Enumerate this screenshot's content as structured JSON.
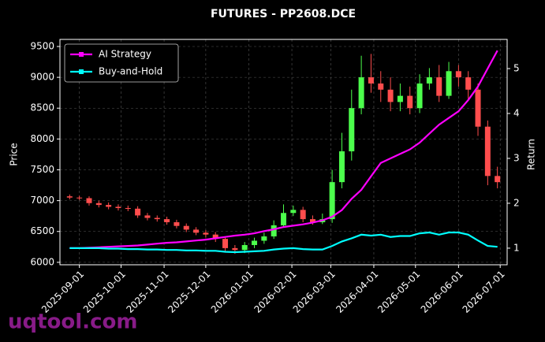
{
  "chart_data": {
    "type": "candlestick",
    "title": "FUTURES - PP2608.DCE",
    "ylabel": "Price",
    "y2label": "Return",
    "x": [
      "2025-08-25",
      "2025-09-01",
      "2025-09-08",
      "2025-09-15",
      "2025-09-22",
      "2025-09-29",
      "2025-10-06",
      "2025-10-13",
      "2025-10-20",
      "2025-10-27",
      "2025-11-03",
      "2025-11-10",
      "2025-11-17",
      "2025-11-24",
      "2025-12-01",
      "2025-12-08",
      "2025-12-15",
      "2025-12-22",
      "2025-12-29",
      "2026-01-05",
      "2026-01-12",
      "2026-01-19",
      "2026-01-26",
      "2026-02-02",
      "2026-02-09",
      "2026-02-16",
      "2026-02-23",
      "2026-03-02",
      "2026-03-09",
      "2026-03-16",
      "2026-03-23",
      "2026-03-30",
      "2026-04-06",
      "2026-04-13",
      "2026-04-20",
      "2026-04-27",
      "2026-05-04",
      "2026-05-11",
      "2026-05-18",
      "2026-05-25",
      "2026-06-01",
      "2026-06-08",
      "2026-06-15",
      "2026-06-22",
      "2026-06-29"
    ],
    "open": [
      7070,
      7050,
      7040,
      6960,
      6930,
      6900,
      6880,
      6870,
      6760,
      6720,
      6700,
      6650,
      6590,
      6530,
      6480,
      6450,
      6380,
      6230,
      6200,
      6280,
      6350,
      6420,
      6600,
      6800,
      6850,
      6700,
      6650,
      6700,
      7300,
      7800,
      8500,
      9000,
      8900,
      8800,
      8600,
      8700,
      8500,
      8900,
      9000,
      8700,
      9100,
      9000,
      8800,
      8200,
      7400
    ],
    "high": [
      7100,
      7080,
      7070,
      7000,
      6970,
      6940,
      6920,
      6910,
      6800,
      6760,
      6740,
      6690,
      6630,
      6570,
      6520,
      6490,
      6420,
      6280,
      6330,
      6400,
      6480,
      6680,
      6940,
      6920,
      6900,
      6760,
      6790,
      7500,
      8100,
      8800,
      9350,
      9380,
      9100,
      9000,
      8900,
      8850,
      9050,
      9150,
      9200,
      9250,
      9200,
      9100,
      8900,
      8300,
      7550
    ],
    "low": [
      7020,
      7010,
      6920,
      6890,
      6860,
      6840,
      6830,
      6720,
      6680,
      6660,
      6610,
      6550,
      6490,
      6440,
      6400,
      6330,
      6180,
      6140,
      6150,
      6230,
      6300,
      6380,
      6560,
      6750,
      6650,
      6610,
      6620,
      6640,
      7200,
      7650,
      8400,
      8750,
      8600,
      8450,
      8450,
      8400,
      8420,
      8800,
      8600,
      8650,
      8850,
      8650,
      8050,
      7250,
      7200
    ],
    "close": [
      7050,
      7040,
      6960,
      6930,
      6900,
      6880,
      6870,
      6760,
      6720,
      6700,
      6650,
      6590,
      6530,
      6480,
      6450,
      6380,
      6230,
      6200,
      6280,
      6350,
      6420,
      6600,
      6800,
      6850,
      6700,
      6650,
      6700,
      7300,
      7800,
      8500,
      9000,
      8900,
      8800,
      8600,
      8700,
      8500,
      8900,
      9000,
      8700,
      9100,
      9000,
      8800,
      8200,
      7400,
      7300
    ],
    "up_color": "#4cff4c",
    "down_color": "#ff4d4d",
    "series": [
      {
        "name": "AI Strategy",
        "color": "#ff00ff",
        "axis": "y2",
        "values": [
          1.0,
          1.0,
          1.01,
          1.02,
          1.03,
          1.04,
          1.05,
          1.06,
          1.08,
          1.1,
          1.12,
          1.13,
          1.15,
          1.17,
          1.19,
          1.22,
          1.25,
          1.28,
          1.3,
          1.33,
          1.38,
          1.42,
          1.47,
          1.5,
          1.53,
          1.57,
          1.62,
          1.7,
          1.85,
          2.1,
          2.3,
          2.6,
          2.9,
          3.0,
          3.1,
          3.2,
          3.35,
          3.55,
          3.75,
          3.9,
          4.05,
          4.3,
          4.6,
          5.0,
          5.4
        ]
      },
      {
        "name": "Buy-and-Hold",
        "color": "#00ffff",
        "axis": "y2",
        "values": [
          1.0,
          1.0,
          1.0,
          1.0,
          0.99,
          0.99,
          0.98,
          0.98,
          0.97,
          0.97,
          0.96,
          0.96,
          0.95,
          0.95,
          0.94,
          0.94,
          0.92,
          0.91,
          0.92,
          0.93,
          0.94,
          0.97,
          0.99,
          1.0,
          0.98,
          0.97,
          0.97,
          1.05,
          1.15,
          1.22,
          1.3,
          1.28,
          1.3,
          1.25,
          1.27,
          1.27,
          1.33,
          1.35,
          1.3,
          1.35,
          1.35,
          1.3,
          1.17,
          1.05,
          1.03
        ]
      }
    ],
    "xlim": [
      "2025-08-18",
      "2026-07-06"
    ],
    "xticks": [
      "2025-09-01",
      "2025-10-01",
      "2025-11-01",
      "2025-12-01",
      "2026-01-01",
      "2026-02-01",
      "2026-03-01",
      "2026-04-01",
      "2026-05-01",
      "2026-06-01",
      "2026-07-01"
    ],
    "ylim": [
      5960,
      9615
    ],
    "yticks": [
      6000,
      6500,
      7000,
      7500,
      8000,
      8500,
      9000,
      9500
    ],
    "y2lim": [
      0.63,
      5.65
    ],
    "y2ticks": [
      1,
      2,
      3,
      4,
      5
    ],
    "grid": true,
    "legend": "upper left"
  },
  "watermark": "uqtool.com"
}
